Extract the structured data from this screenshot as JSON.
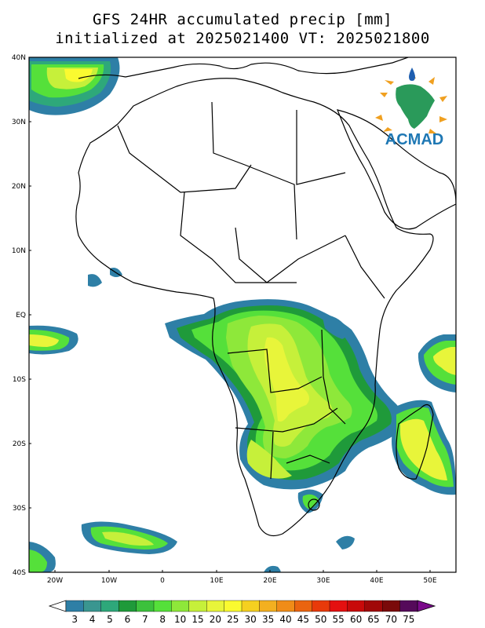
{
  "title": {
    "line1": "GFS 24HR accumulated precip [mm]",
    "line2": "initialized at 2025021400 VT: 2025021800"
  },
  "logo": {
    "text": "ACMAD",
    "colors": {
      "text": "#1f78b4",
      "continent": "#2a9a5a",
      "rays": "#f0a020",
      "drop": "#1f5fb0"
    }
  },
  "map": {
    "lat_labels": [
      "40N",
      "30N",
      "20N",
      "10N",
      "EQ",
      "10S",
      "20S",
      "30S",
      "40S"
    ],
    "lon_labels": [
      "20W",
      "10W",
      "0",
      "10E",
      "20E",
      "30E",
      "40E",
      "50E"
    ]
  },
  "colorbar": {
    "ticks": [
      "3",
      "4",
      "5",
      "6",
      "7",
      "8",
      "10",
      "15",
      "20",
      "25",
      "30",
      "35",
      "40",
      "45",
      "50",
      "55",
      "60",
      "65",
      "70",
      "75"
    ],
    "colors": [
      "#2e7fa6",
      "#3a9690",
      "#2ea87a",
      "#1f9a3a",
      "#3cc13c",
      "#55e03a",
      "#8ee83a",
      "#c6f03a",
      "#e8f53a",
      "#fafa30",
      "#f5d020",
      "#f3b020",
      "#f08c18",
      "#ea6410",
      "#e83a0a",
      "#e41010",
      "#c80a0a",
      "#a00808",
      "#7a0a0a",
      "#550a5a"
    ]
  }
}
